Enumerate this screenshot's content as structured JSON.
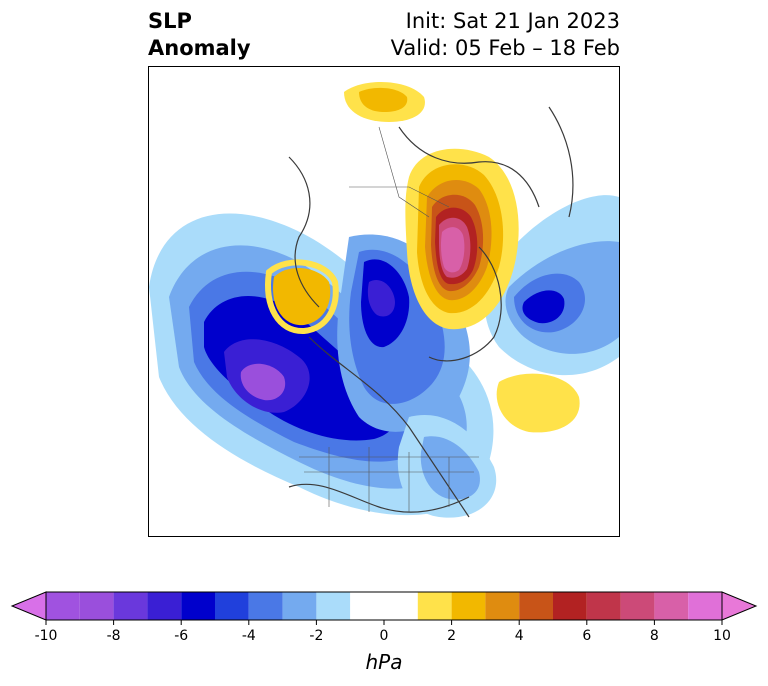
{
  "title": {
    "variable_line1": "SLP",
    "variable_line2": "Anomaly",
    "init": "Init: Sat 21 Jan 2023",
    "valid": "Valid: 05 Feb – 18 Feb"
  },
  "map": {
    "projection": "polar-stereographic",
    "region": "Northern Hemisphere / North America"
  },
  "colorbar": {
    "unit": "hPa",
    "extend": "both",
    "tick_labels": [
      "-10",
      "-8",
      "-6",
      "-4",
      "-2",
      "0",
      "2",
      "4",
      "6",
      "8",
      "10"
    ],
    "bins": [
      {
        "range": [
          -10,
          -9
        ],
        "color": "#a052e0"
      },
      {
        "range": [
          -9,
          -8
        ],
        "color": "#9a4fdc"
      },
      {
        "range": [
          -8,
          -7
        ],
        "color": "#6a38dc"
      },
      {
        "range": [
          -7,
          -6
        ],
        "color": "#3a1fd4"
      },
      {
        "range": [
          -6,
          -5
        ],
        "color": "#0000cc"
      },
      {
        "range": [
          -5,
          -4
        ],
        "color": "#2040dc"
      },
      {
        "range": [
          -4,
          -3
        ],
        "color": "#4a78e6"
      },
      {
        "range": [
          -3,
          -2
        ],
        "color": "#74aaef"
      },
      {
        "range": [
          -2,
          -1
        ],
        "color": "#aadcfa"
      },
      {
        "range": [
          -1,
          1
        ],
        "color": "#ffffff"
      },
      {
        "range": [
          1,
          2
        ],
        "color": "#ffe24a"
      },
      {
        "range": [
          2,
          3
        ],
        "color": "#f2b800"
      },
      {
        "range": [
          3,
          4
        ],
        "color": "#df8c10"
      },
      {
        "range": [
          4,
          5
        ],
        "color": "#c85418"
      },
      {
        "range": [
          5,
          6
        ],
        "color": "#b22222"
      },
      {
        "range": [
          6,
          7
        ],
        "color": "#c0354a"
      },
      {
        "range": [
          7,
          8
        ],
        "color": "#cc4a78"
      },
      {
        "range": [
          8,
          9
        ],
        "color": "#d860a8"
      },
      {
        "range": [
          9,
          10
        ],
        "color": "#e070d8"
      }
    ],
    "extend_low_color": "#d870e8",
    "extend_high_color": "#e878d8"
  }
}
